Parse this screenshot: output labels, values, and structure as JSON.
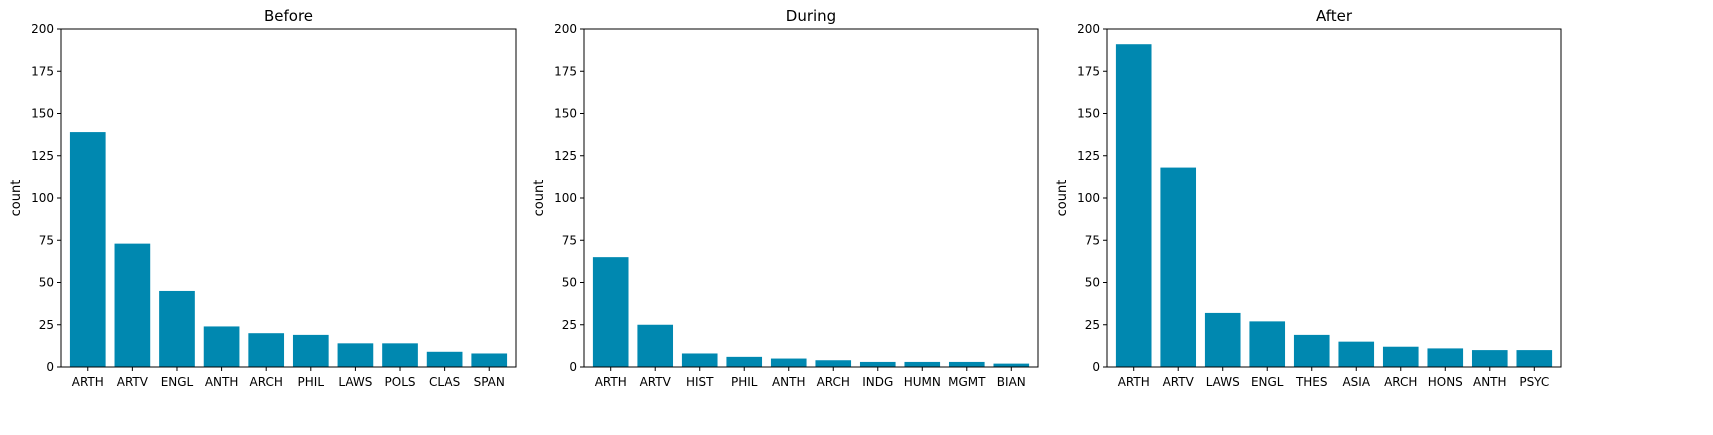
{
  "chart_data": [
    {
      "type": "bar",
      "title": "Before",
      "xlabel": "",
      "ylabel": "count",
      "ylim": [
        0,
        200
      ],
      "yticks": [
        0,
        25,
        50,
        75,
        100,
        125,
        150,
        175,
        200
      ],
      "categories": [
        "ARTH",
        "ARTV",
        "ENGL",
        "ANTH",
        "ARCH",
        "PHIL",
        "LAWS",
        "POLS",
        "CLAS",
        "SPAN"
      ],
      "values": [
        139,
        73,
        45,
        24,
        20,
        19,
        14,
        14,
        9,
        8
      ],
      "color": "#0088b0",
      "grid": false,
      "legend": "none"
    },
    {
      "type": "bar",
      "title": "During",
      "xlabel": "",
      "ylabel": "count",
      "ylim": [
        0,
        200
      ],
      "yticks": [
        0,
        25,
        50,
        75,
        100,
        125,
        150,
        175,
        200
      ],
      "categories": [
        "ARTH",
        "ARTV",
        "HIST",
        "PHIL",
        "ANTH",
        "ARCH",
        "INDG",
        "HUMN",
        "MGMT",
        "BIAN"
      ],
      "values": [
        65,
        25,
        8,
        6,
        5,
        4,
        3,
        3,
        3,
        2
      ],
      "color": "#0088b0",
      "grid": false,
      "legend": "none"
    },
    {
      "type": "bar",
      "title": "After",
      "xlabel": "",
      "ylabel": "count",
      "ylim": [
        0,
        200
      ],
      "yticks": [
        0,
        25,
        50,
        75,
        100,
        125,
        150,
        175,
        200
      ],
      "categories": [
        "ARTH",
        "ARTV",
        "LAWS",
        "ENGL",
        "THES",
        "ASIA",
        "ARCH",
        "HONS",
        "ANTH",
        "PSYC"
      ],
      "values": [
        191,
        118,
        32,
        27,
        19,
        15,
        12,
        11,
        10,
        10
      ],
      "color": "#0088b0",
      "grid": false,
      "legend": "none"
    }
  ]
}
